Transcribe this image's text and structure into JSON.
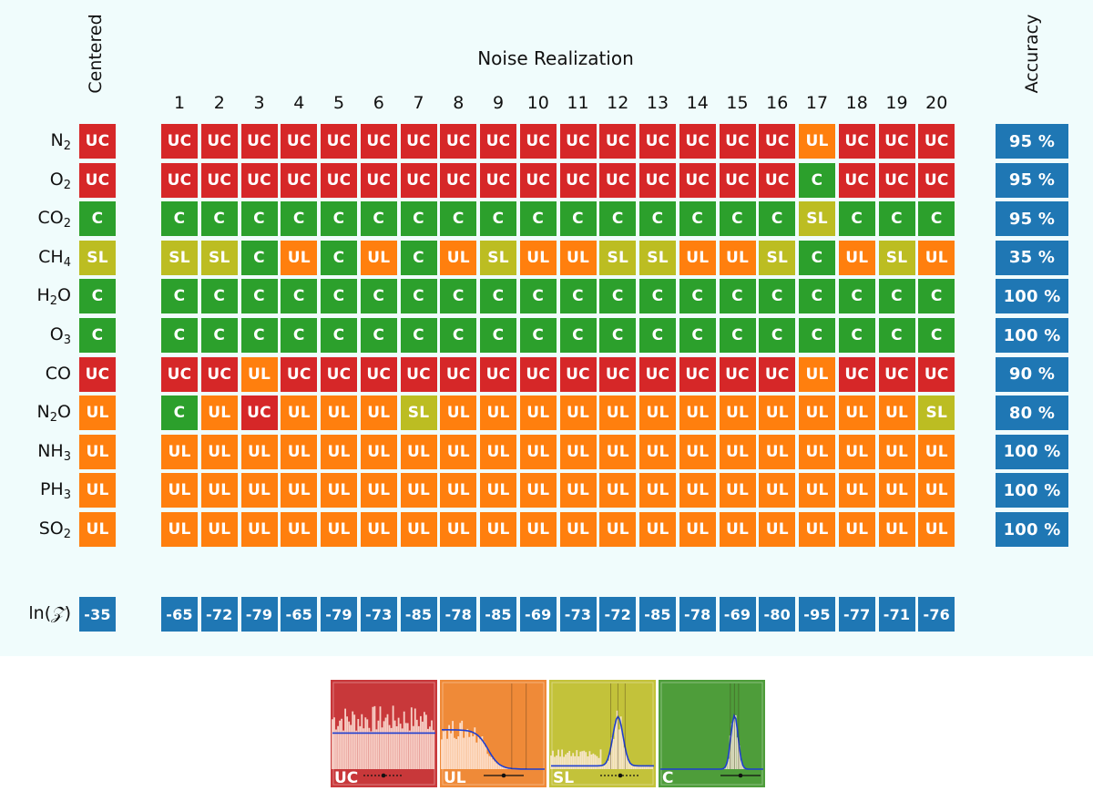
{
  "header": {
    "centered_label": "Centered",
    "noise_title": "Noise Realization",
    "accuracy_label": "Accuracy"
  },
  "colors": {
    "UC": "#d62728",
    "UL": "#ff7f0e",
    "SL": "#bcbd22",
    "C": "#2ca02c",
    "accent": "#1f77b4",
    "panel_bg": "#f0fcfc"
  },
  "columns": [
    "1",
    "2",
    "3",
    "4",
    "5",
    "6",
    "7",
    "8",
    "9",
    "10",
    "11",
    "12",
    "13",
    "14",
    "15",
    "16",
    "17",
    "18",
    "19",
    "20"
  ],
  "rows": [
    {
      "label": "N",
      "sub": "2",
      "suffix": "",
      "centered": "UC",
      "cells": [
        "UC",
        "UC",
        "UC",
        "UC",
        "UC",
        "UC",
        "UC",
        "UC",
        "UC",
        "UC",
        "UC",
        "UC",
        "UC",
        "UC",
        "UC",
        "UC",
        "UL",
        "UC",
        "UC",
        "UC"
      ],
      "accuracy": "95 %"
    },
    {
      "label": "O",
      "sub": "2",
      "suffix": "",
      "centered": "UC",
      "cells": [
        "UC",
        "UC",
        "UC",
        "UC",
        "UC",
        "UC",
        "UC",
        "UC",
        "UC",
        "UC",
        "UC",
        "UC",
        "UC",
        "UC",
        "UC",
        "UC",
        "C",
        "UC",
        "UC",
        "UC"
      ],
      "accuracy": "95 %"
    },
    {
      "label": "CO",
      "sub": "2",
      "suffix": "",
      "centered": "C",
      "cells": [
        "C",
        "C",
        "C",
        "C",
        "C",
        "C",
        "C",
        "C",
        "C",
        "C",
        "C",
        "C",
        "C",
        "C",
        "C",
        "C",
        "SL",
        "C",
        "C",
        "C"
      ],
      "accuracy": "95 %"
    },
    {
      "label": "CH",
      "sub": "4",
      "suffix": "",
      "centered": "SL",
      "cells": [
        "SL",
        "SL",
        "C",
        "UL",
        "C",
        "UL",
        "C",
        "UL",
        "SL",
        "UL",
        "UL",
        "SL",
        "SL",
        "UL",
        "UL",
        "SL",
        "C",
        "UL",
        "SL",
        "UL"
      ],
      "accuracy": "35 %"
    },
    {
      "label": "H",
      "sub": "2",
      "suffix": "O",
      "centered": "C",
      "cells": [
        "C",
        "C",
        "C",
        "C",
        "C",
        "C",
        "C",
        "C",
        "C",
        "C",
        "C",
        "C",
        "C",
        "C",
        "C",
        "C",
        "C",
        "C",
        "C",
        "C"
      ],
      "accuracy": "100 %"
    },
    {
      "label": "O",
      "sub": "3",
      "suffix": "",
      "centered": "C",
      "cells": [
        "C",
        "C",
        "C",
        "C",
        "C",
        "C",
        "C",
        "C",
        "C",
        "C",
        "C",
        "C",
        "C",
        "C",
        "C",
        "C",
        "C",
        "C",
        "C",
        "C"
      ],
      "accuracy": "100 %"
    },
    {
      "label": "CO",
      "sub": "",
      "suffix": "",
      "centered": "UC",
      "cells": [
        "UC",
        "UC",
        "UL",
        "UC",
        "UC",
        "UC",
        "UC",
        "UC",
        "UC",
        "UC",
        "UC",
        "UC",
        "UC",
        "UC",
        "UC",
        "UC",
        "UL",
        "UC",
        "UC",
        "UC"
      ],
      "accuracy": "90 %"
    },
    {
      "label": "N",
      "sub": "2",
      "suffix": "O",
      "centered": "UL",
      "cells": [
        "C",
        "UL",
        "UC",
        "UL",
        "UL",
        "UL",
        "SL",
        "UL",
        "UL",
        "UL",
        "UL",
        "UL",
        "UL",
        "UL",
        "UL",
        "UL",
        "UL",
        "UL",
        "UL",
        "SL"
      ],
      "accuracy": "80 %"
    },
    {
      "label": "NH",
      "sub": "3",
      "suffix": "",
      "centered": "UL",
      "cells": [
        "UL",
        "UL",
        "UL",
        "UL",
        "UL",
        "UL",
        "UL",
        "UL",
        "UL",
        "UL",
        "UL",
        "UL",
        "UL",
        "UL",
        "UL",
        "UL",
        "UL",
        "UL",
        "UL",
        "UL"
      ],
      "accuracy": "100 %"
    },
    {
      "label": "PH",
      "sub": "3",
      "suffix": "",
      "centered": "UL",
      "cells": [
        "UL",
        "UL",
        "UL",
        "UL",
        "UL",
        "UL",
        "UL",
        "UL",
        "UL",
        "UL",
        "UL",
        "UL",
        "UL",
        "UL",
        "UL",
        "UL",
        "UL",
        "UL",
        "UL",
        "UL"
      ],
      "accuracy": "100 %"
    },
    {
      "label": "SO",
      "sub": "2",
      "suffix": "",
      "centered": "UL",
      "cells": [
        "UL",
        "UL",
        "UL",
        "UL",
        "UL",
        "UL",
        "UL",
        "UL",
        "UL",
        "UL",
        "UL",
        "UL",
        "UL",
        "UL",
        "UL",
        "UL",
        "UL",
        "UL",
        "UL",
        "UL"
      ],
      "accuracy": "100 %"
    }
  ],
  "lnz": {
    "label": "ln(ℤ)",
    "label_text": "ln(",
    "label_z": "𝒵",
    "label_close": ")",
    "centered": "-35",
    "values": [
      "-65",
      "-72",
      "-79",
      "-65",
      "-79",
      "-73",
      "-85",
      "-78",
      "-85",
      "-69",
      "-73",
      "-72",
      "-85",
      "-78",
      "-69",
      "-80",
      "-95",
      "-77",
      "-71",
      "-76"
    ]
  },
  "legend": [
    {
      "code": "UC",
      "fill": "#c8383a"
    },
    {
      "code": "UL",
      "fill": "#ef8a38"
    },
    {
      "code": "SL",
      "fill": "#c3c23a"
    },
    {
      "code": "C",
      "fill": "#4e9d3a"
    }
  ],
  "chart_data": {
    "type": "heatmap",
    "title": "Noise Realization",
    "xlabel": "Noise Realization",
    "ylabel": "",
    "x": [
      1,
      2,
      3,
      4,
      5,
      6,
      7,
      8,
      9,
      10,
      11,
      12,
      13,
      14,
      15,
      16,
      17,
      18,
      19,
      20
    ],
    "categories": [
      "N2",
      "O2",
      "CO2",
      "CH4",
      "H2O",
      "O3",
      "CO",
      "N2O",
      "NH3",
      "PH3",
      "SO2"
    ],
    "classes": [
      "UC",
      "UL",
      "SL",
      "C"
    ],
    "centered": [
      "UC",
      "UC",
      "C",
      "SL",
      "C",
      "C",
      "UC",
      "UL",
      "UL",
      "UL",
      "UL"
    ],
    "accuracy_percent": [
      95,
      95,
      95,
      35,
      100,
      100,
      90,
      80,
      100,
      100,
      100
    ],
    "ln_evidence": {
      "centered": -35,
      "values": [
        -65,
        -72,
        -79,
        -65,
        -79,
        -73,
        -85,
        -78,
        -85,
        -69,
        -73,
        -72,
        -85,
        -78,
        -69,
        -80,
        -95,
        -77,
        -71,
        -76
      ]
    }
  }
}
